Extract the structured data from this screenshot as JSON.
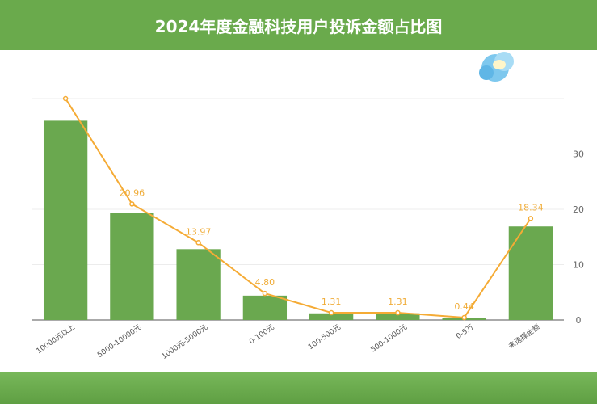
{
  "header": {
    "title": "2024年度金融科技用户投诉金额占比图"
  },
  "chart_data": {
    "type": "bar",
    "title": "2024年度金融科技用户投诉金额占比图",
    "categories": [
      "10000元以上",
      "5000-10000元",
      "1000元-5000元",
      "0-100元",
      "100-500元",
      "500-1000元",
      "0-5万",
      "未选择金额"
    ],
    "series": [
      {
        "type": "bar",
        "values": [
          36,
          19.3,
          12.8,
          4.4,
          1.2,
          1.2,
          0.4,
          16.9
        ]
      },
      {
        "type": "line",
        "values": [
          40,
          20.96,
          13.97,
          4.8,
          1.31,
          1.31,
          0.44,
          18.34
        ],
        "labels": [
          "",
          "20.96",
          "13.97",
          "4.80",
          "1.31",
          "1.31",
          "0.44",
          "18.34"
        ]
      }
    ],
    "yaxis_ticks": [
      "0",
      "10",
      "20",
      "30"
    ],
    "ylim": [
      0,
      40
    ],
    "grid": true,
    "colors": {
      "bar": "#6aa84f",
      "line": "#f5ab35",
      "header": "#6aaa4c"
    }
  }
}
